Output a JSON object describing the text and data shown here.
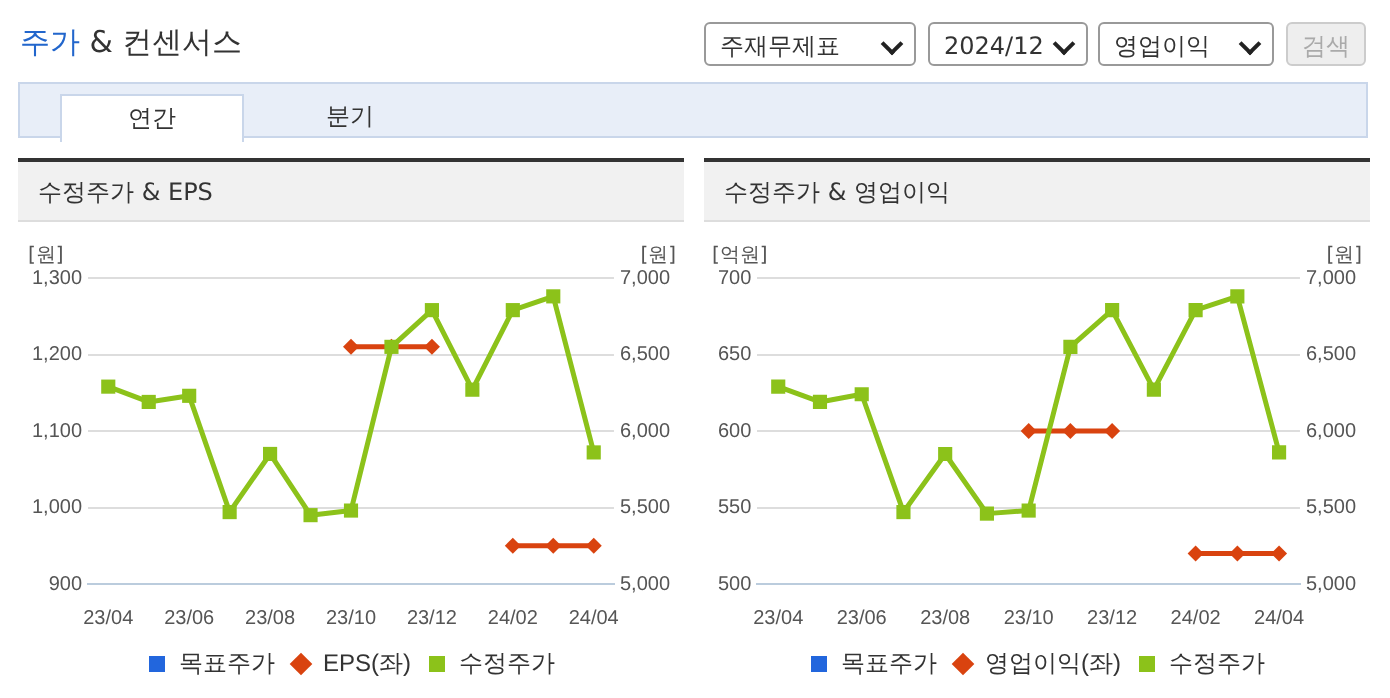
{
  "chart_data": [
    {
      "type": "other",
      "title": "주가 & 컨센서스",
      "annotations": [
        "주재무제표",
        "2024/12",
        "영업이익",
        "검색",
        "연간",
        "분기"
      ]
    },
    {
      "type": "line",
      "title": "수정주가 & EPS",
      "ylabel": "[원]",
      "y2label": "[원]",
      "categories": [
        "23/04",
        null,
        "23/06",
        null,
        "23/08",
        null,
        "23/10",
        null,
        "23/12",
        null,
        "24/02",
        null,
        "24/04"
      ],
      "series": [
        {
          "name": "목표주가",
          "color": "#2266dd",
          "marker": "square",
          "values": [
            null,
            null,
            null,
            null,
            null,
            null,
            null,
            null,
            null,
            null,
            null,
            null,
            null
          ]
        },
        {
          "name": "EPS(좌)",
          "color": "#d9430f",
          "marker": "diamond",
          "values": [
            null,
            null,
            null,
            null,
            null,
            null,
            1210,
            1210,
            1210,
            null,
            950,
            950,
            950
          ]
        },
        {
          "name": "수정주가",
          "color": "#8cc21a",
          "marker": "square",
          "axis": "y2",
          "values": [
            6290,
            6190,
            6230,
            5470,
            5850,
            5450,
            5480,
            6550,
            6790,
            6270,
            6790,
            6880,
            5860
          ]
        }
      ],
      "ylim": [
        900,
        1300
      ],
      "yticks": [
        900,
        {
          "value": 1000,
          "label": "1,000"
        },
        {
          "value": 1100,
          "label": "1,100"
        },
        {
          "value": 1200,
          "label": "1,200"
        },
        {
          "value": 1300,
          "label": "1,300"
        }
      ],
      "y2lim": [
        5000,
        7000
      ],
      "y2ticks": [
        {
          "value": 5000,
          "label": "5,000"
        },
        {
          "value": 5500,
          "label": "5,500"
        },
        {
          "value": 6000,
          "label": "6,000"
        },
        {
          "value": 6500,
          "label": "6,500"
        },
        {
          "value": 7000,
          "label": "7,000"
        }
      ],
      "grid": "y",
      "legend": "bottom",
      "line_style": "solid"
    },
    {
      "type": "line",
      "title": "수정주가 & 영업이익",
      "ylabel": "[억원]",
      "y2label": "[원]",
      "categories": [
        "23/04",
        null,
        "23/06",
        null,
        "23/08",
        null,
        "23/10",
        null,
        "23/12",
        null,
        "24/02",
        null,
        "24/04"
      ],
      "series": [
        {
          "name": "목표주가",
          "color": "#2266dd",
          "marker": "square",
          "values": [
            null,
            null,
            null,
            null,
            null,
            null,
            null,
            null,
            null,
            null,
            null,
            null,
            null
          ]
        },
        {
          "name": "영업이익(좌)",
          "color": "#d9430f",
          "marker": "diamond",
          "values": [
            null,
            null,
            null,
            null,
            null,
            null,
            600,
            600,
            600,
            null,
            520,
            520,
            520
          ]
        },
        {
          "name": "수정주가",
          "color": "#8cc21a",
          "marker": "square",
          "axis": "y2",
          "values": [
            6290,
            6190,
            6240,
            5470,
            5850,
            5460,
            5480,
            6550,
            6790,
            6270,
            6790,
            6880,
            5860
          ]
        }
      ],
      "ylim": [
        500,
        700
      ],
      "yticks": [
        500,
        550,
        600,
        650,
        700
      ],
      "y2lim": [
        5000,
        7000
      ],
      "y2ticks": [
        {
          "value": 5000,
          "label": "5,000"
        },
        {
          "value": 5500,
          "label": "5,500"
        },
        {
          "value": 6000,
          "label": "6,000"
        },
        {
          "value": 6500,
          "label": "6,500"
        },
        {
          "value": 7000,
          "label": "7,000"
        }
      ],
      "grid": "y",
      "legend": "bottom",
      "line_style": "solid"
    }
  ]
}
